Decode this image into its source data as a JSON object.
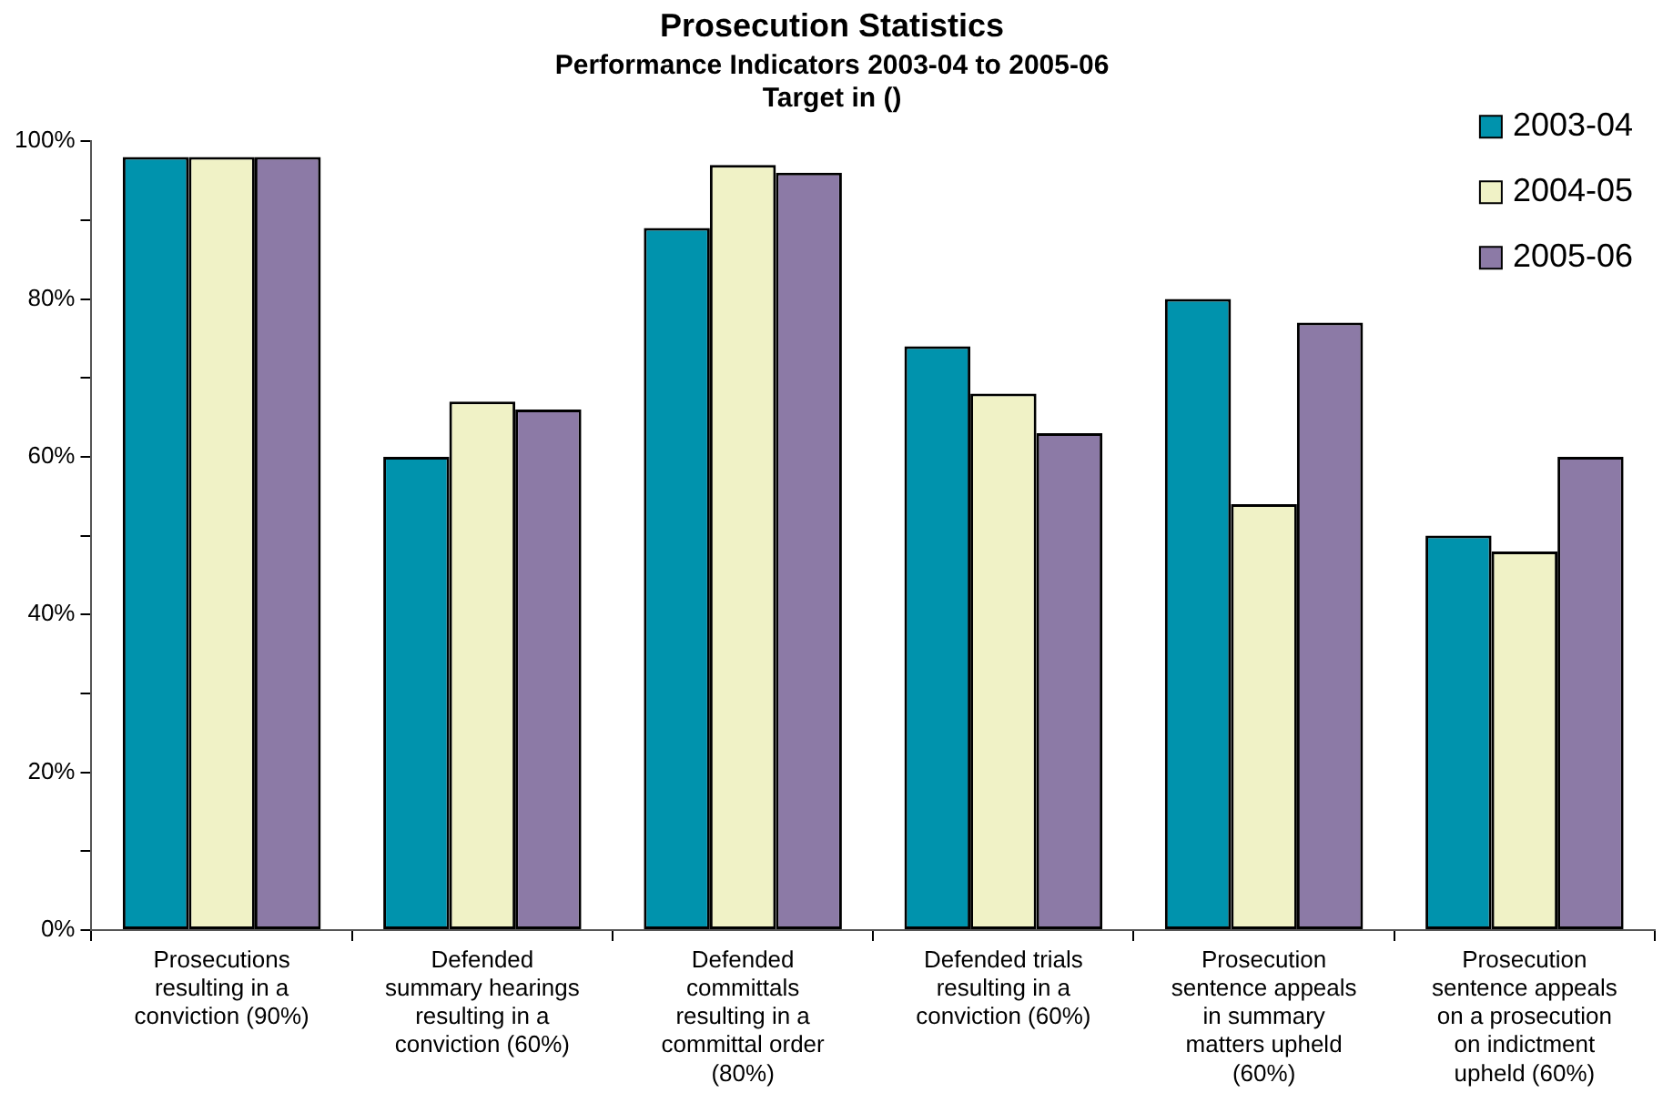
{
  "chart_data": {
    "type": "bar",
    "title": "Prosecution Statistics",
    "subtitle": "Performance Indicators 2003-04 to 2005-06\nTarget in ()",
    "categories": [
      "Prosecutions resulting in a conviction (90%)",
      "Defended summary hearings resulting in a conviction (60%)",
      "Defended committals resulting in a committal order (80%)",
      "Defended trials resulting in a conviction (60%)",
      "Prosecution sentence appeals in summary matters upheld (60%)",
      "Prosecution sentence appeals on a prosecution on indictment upheld (60%)"
    ],
    "series": [
      {
        "name": "2003-04",
        "color": "#0093ad",
        "values": [
          98,
          60,
          89,
          74,
          80,
          50
        ]
      },
      {
        "name": "2004-05",
        "color": "#f0f2c6",
        "values": [
          98,
          67,
          97,
          68,
          54,
          48
        ]
      },
      {
        "name": "2005-06",
        "color": "#8c7aa6",
        "values": [
          98,
          66,
          96,
          63,
          77,
          60
        ]
      }
    ],
    "ylim": [
      0,
      100
    ],
    "yticks": [
      {
        "value": 0,
        "label": "0%"
      },
      {
        "value": 10,
        "label": null
      },
      {
        "value": 20,
        "label": "20%"
      },
      {
        "value": 30,
        "label": null
      },
      {
        "value": 40,
        "label": "40%"
      },
      {
        "value": 50,
        "label": null
      },
      {
        "value": 60,
        "label": "60%"
      },
      {
        "value": 70,
        "label": null
      },
      {
        "value": 80,
        "label": "80%"
      },
      {
        "value": 90,
        "label": null
      },
      {
        "value": 100,
        "label": "100%"
      }
    ],
    "grid": false,
    "legend": "top right"
  }
}
